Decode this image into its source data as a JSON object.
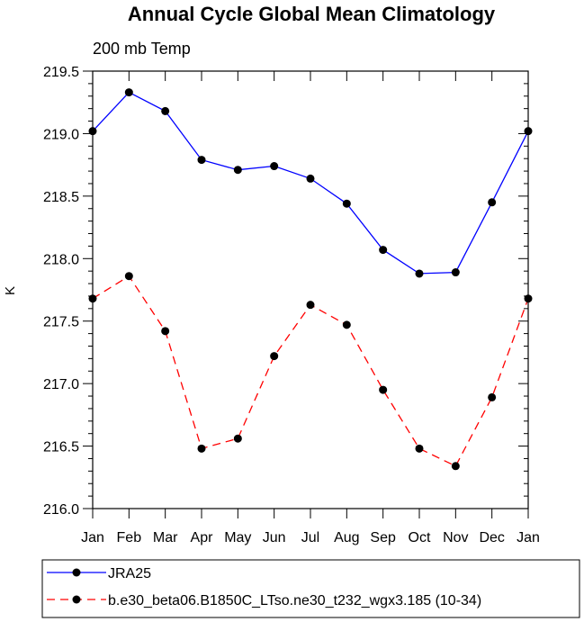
{
  "chart_data": {
    "type": "line",
    "title": "Annual Cycle Global Mean Climatology",
    "subtitle": "200 mb Temp",
    "ylabel": "K",
    "xlabel": "",
    "categories": [
      "Jan",
      "Feb",
      "Mar",
      "Apr",
      "May",
      "Jun",
      "Jul",
      "Aug",
      "Sep",
      "Oct",
      "Nov",
      "Dec",
      "Jan"
    ],
    "ylim": [
      216.0,
      219.5
    ],
    "yticks": [
      "216.0",
      "216.5",
      "217.0",
      "217.5",
      "218.0",
      "218.5",
      "219.0",
      "219.5"
    ],
    "series": [
      {
        "name": "JRA25",
        "color": "#0000ff",
        "dash": "solid",
        "values": [
          219.02,
          219.33,
          219.18,
          218.79,
          218.71,
          218.74,
          218.64,
          218.44,
          218.07,
          217.88,
          217.89,
          218.45,
          219.02
        ]
      },
      {
        "name": "b.e30_beta06.B1850C_LTso.ne30_t232_wgx3.185 (10-34)",
        "color": "#ff0000",
        "dash": "dashed",
        "values": [
          217.68,
          217.86,
          217.42,
          216.48,
          216.56,
          217.22,
          217.63,
          217.47,
          216.95,
          216.48,
          216.34,
          216.89,
          217.68
        ]
      }
    ]
  }
}
